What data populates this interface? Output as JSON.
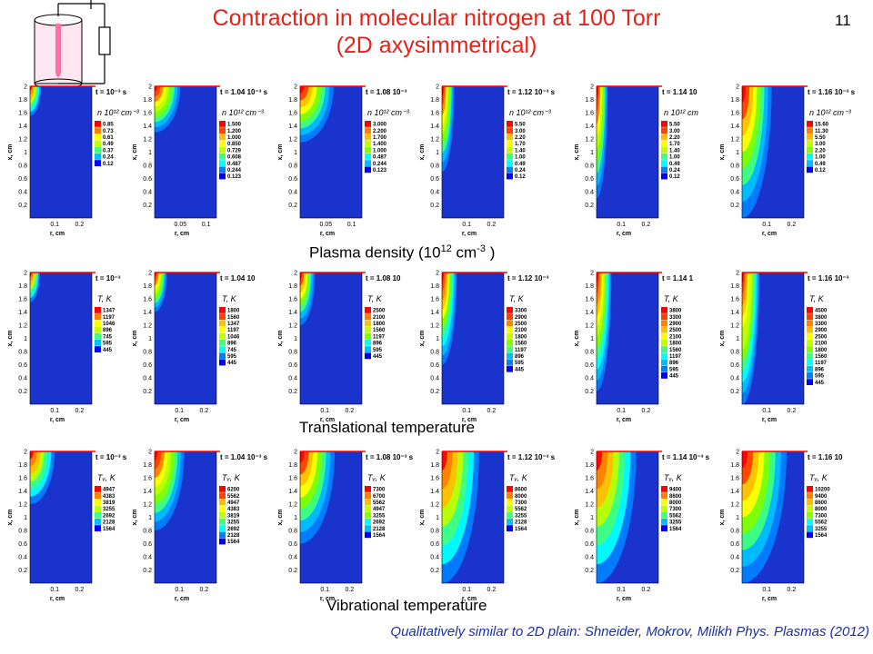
{
  "slide": {
    "title_line1": "Contraction in molecular nitrogen at 100 Torr",
    "title_line2": "(2D axysimmetrical)",
    "page_number": "11",
    "footnote": "Qualitatively similar to 2D plain: Shneider, Mokrov, Milikh Phys. Plasmas (2012)"
  },
  "row_labels": [
    {
      "base": "Plasma density (10",
      "sup1": "12",
      "mid": " cm",
      "sup2": "-3",
      "end": " )"
    },
    {
      "base": "Translational temperature",
      "sup1": "",
      "mid": "",
      "sup2": "",
      "end": ""
    },
    {
      "base": "Vibrational temperature",
      "sup1": "",
      "mid": "",
      "sup2": "",
      "end": ""
    }
  ],
  "colors": {
    "title": "#e2231a",
    "footnote": "#1c2fa5",
    "field_background": "#1a33cc",
    "electrode_line": "#ff0000",
    "colormap": [
      "#0000ff",
      "#0080ff",
      "#00bfff",
      "#00ffff",
      "#40ff80",
      "#80ff00",
      "#bfff00",
      "#ffff00",
      "#ffbf00",
      "#ff8000",
      "#ff4000",
      "#ff0000"
    ],
    "reactor_fill": "#ffe0ee",
    "reactor_channel": "#ff6fa5"
  },
  "axis": {
    "ylabel": "x, cm",
    "xlabel": "r, cm",
    "yticks": [
      "0.2",
      "0.4",
      "0.6",
      "0.8",
      "1",
      "1.2",
      "1.4",
      "1.6",
      "1.8",
      "2"
    ]
  },
  "chart_data": [
    {
      "type": "heatmap",
      "row": "density",
      "time_label": "t = 10⁻³ s",
      "legend_title": "n 10¹² cm⁻³",
      "legend": [
        "0.85",
        "0.73",
        "0.61",
        "0.49",
        "0.37",
        "0.24",
        "0.12"
      ],
      "xticks": [
        "0.1",
        "0.2"
      ],
      "x_range": [
        0,
        0.25
      ],
      "y_range": [
        0,
        2
      ],
      "xlabel": "r, cm",
      "ylabel": "x, cm",
      "contour_extent_r": 0.045,
      "contour_extent_x": 0.45
    },
    {
      "type": "heatmap",
      "row": "density",
      "time_label": "t = 1.04 10⁻³ s",
      "legend_title": "n 10¹² cm⁻³",
      "legend": [
        "1.500",
        "1.200",
        "1.000",
        "0.850",
        "0.729",
        "0.608",
        "0.487",
        "0.244",
        "0.123"
      ],
      "xticks": [
        "0.05",
        "0.1"
      ],
      "x_range": [
        0,
        0.12
      ],
      "y_range": [
        0,
        2
      ],
      "xlabel": "r, cm",
      "ylabel": "x, cm",
      "contour_extent_r": 0.05,
      "contour_extent_x": 0.7
    },
    {
      "type": "heatmap",
      "row": "density",
      "time_label": "t = 1.08 10⁻³",
      "legend_title": "n 10¹² cm⁻³",
      "legend": [
        "3.000",
        "2.200",
        "1.700",
        "1.400",
        "1.000",
        "0.487",
        "0.244",
        "0.123"
      ],
      "xticks": [
        "0.05",
        "0.1"
      ],
      "x_range": [
        0,
        0.12
      ],
      "y_range": [
        0,
        2
      ],
      "xlabel": "r, cm",
      "ylabel": "x, cm",
      "contour_extent_r": 0.065,
      "contour_extent_x": 0.85
    },
    {
      "type": "heatmap",
      "row": "density",
      "time_label": "t = 1.12 10⁻³ s",
      "legend_title": "n 10¹² cm⁻³",
      "legend": [
        "5.50",
        "3.00",
        "2.20",
        "1.70",
        "1.40",
        "1.00",
        "0.49",
        "0.24",
        "0.12"
      ],
      "xticks": [
        "0.1",
        "0.2"
      ],
      "x_range": [
        0,
        0.25
      ],
      "y_range": [
        0,
        2
      ],
      "xlabel": "r, cm",
      "ylabel": "x, cm",
      "contour_extent_r": 0.05,
      "contour_extent_x": 1.3
    },
    {
      "type": "heatmap",
      "row": "density",
      "time_label": "t = 1.14 10",
      "legend_title": "n 10¹² cm",
      "legend": [
        "5.50",
        "3.00",
        "2.20",
        "1.70",
        "1.40",
        "1.00",
        "0.49",
        "0.24",
        "0.12"
      ],
      "xticks": [
        "0.1",
        "0.2"
      ],
      "x_range": [
        0,
        0.25
      ],
      "y_range": [
        0,
        2
      ],
      "xlabel": "r, cm",
      "ylabel": "x, cm",
      "contour_extent_r": 0.045,
      "contour_extent_x": 1.7
    },
    {
      "type": "heatmap",
      "row": "density",
      "time_label": "t = 1.16 10⁻³ s",
      "legend_title": "n 10¹² cm⁻³",
      "legend": [
        "15.60",
        "11.30",
        "5.50",
        "3.00",
        "2.20",
        "1.00",
        "0.49",
        "0.12"
      ],
      "xticks": [
        "0.1",
        "0.2"
      ],
      "x_range": [
        0,
        0.25
      ],
      "y_range": [
        0,
        2
      ],
      "xlabel": "r, cm",
      "ylabel": "x, cm",
      "contour_extent_r": 0.12,
      "contour_extent_x": 2.0
    },
    {
      "type": "heatmap",
      "row": "translational",
      "time_label": "t = 10⁻³",
      "legend_title": "T, K",
      "legend": [
        "1347",
        "1197",
        "1046",
        "896",
        "745",
        "595",
        "445"
      ],
      "xticks": [
        "0.1",
        "0.2"
      ],
      "x_range": [
        0,
        0.25
      ],
      "y_range": [
        0,
        2
      ],
      "xlabel": "r, cm",
      "ylabel": "x, cm",
      "contour_extent_r": 0.04,
      "contour_extent_x": 0.45
    },
    {
      "type": "heatmap",
      "row": "translational",
      "time_label": "t = 1.04 10",
      "legend_title": "T, K",
      "legend": [
        "1800",
        "1560",
        "1347",
        "1197",
        "1046",
        "896",
        "745",
        "595",
        "445"
      ],
      "xticks": [
        "0.1",
        "0.2"
      ],
      "x_range": [
        0,
        0.25
      ],
      "y_range": [
        0,
        2
      ],
      "xlabel": "r, cm",
      "ylabel": "x, cm",
      "contour_extent_r": 0.05,
      "contour_extent_x": 0.6
    },
    {
      "type": "heatmap",
      "row": "translational",
      "time_label": "t = 1.08 10",
      "legend_title": "T, K",
      "legend": [
        "2500",
        "2100",
        "1800",
        "1560",
        "1197",
        "896",
        "595",
        "445"
      ],
      "xticks": [
        "0.1",
        "0.2"
      ],
      "x_range": [
        0,
        0.25
      ],
      "y_range": [
        0,
        2
      ],
      "xlabel": "r, cm",
      "ylabel": "x, cm",
      "contour_extent_r": 0.06,
      "contour_extent_x": 0.8
    },
    {
      "type": "heatmap",
      "row": "translational",
      "time_label": "t = 1.12 10⁻³",
      "legend_title": "T, K",
      "legend": [
        "3300",
        "2900",
        "2500",
        "2100",
        "1800",
        "1560",
        "1197",
        "896",
        "595",
        "445"
      ],
      "xticks": [
        "0.1",
        "0.2"
      ],
      "x_range": [
        0,
        0.25
      ],
      "y_range": [
        0,
        2
      ],
      "xlabel": "r, cm",
      "ylabel": "x, cm",
      "contour_extent_r": 0.06,
      "contour_extent_x": 1.4
    },
    {
      "type": "heatmap",
      "row": "translational",
      "time_label": "t = 1.14 1",
      "legend_title": "T, K",
      "legend": [
        "3800",
        "3300",
        "2900",
        "2500",
        "2100",
        "1800",
        "1560",
        "1197",
        "896",
        "595",
        "445"
      ],
      "xticks": [
        "0.1",
        "0.2"
      ],
      "x_range": [
        0,
        0.25
      ],
      "y_range": [
        0,
        2
      ],
      "xlabel": "r, cm",
      "ylabel": "x, cm",
      "contour_extent_r": 0.06,
      "contour_extent_x": 1.8
    },
    {
      "type": "heatmap",
      "row": "translational",
      "time_label": "t = 1.16 10⁻³",
      "legend_title": "T, K",
      "legend": [
        "4500",
        "3800",
        "3300",
        "2900",
        "2500",
        "2100",
        "1800",
        "1560",
        "1197",
        "896",
        "595",
        "445"
      ],
      "xticks": [
        "0.1",
        "0.2"
      ],
      "x_range": [
        0,
        0.25
      ],
      "y_range": [
        0,
        2
      ],
      "xlabel": "r, cm",
      "ylabel": "x, cm",
      "contour_extent_r": 0.07,
      "contour_extent_x": 2.0
    },
    {
      "type": "heatmap",
      "row": "vibrational",
      "time_label": "t = 10⁻³ s",
      "legend_title": "Tᵥ, K",
      "legend": [
        "4947",
        "4383",
        "3819",
        "3255",
        "2692",
        "2128",
        "1564"
      ],
      "xticks": [
        "0.1",
        "0.2"
      ],
      "x_range": [
        0,
        0.25
      ],
      "y_range": [
        0,
        2
      ],
      "xlabel": "r, cm",
      "ylabel": "x, cm",
      "contour_extent_r": 0.1,
      "contour_extent_x": 0.8
    },
    {
      "type": "heatmap",
      "row": "vibrational",
      "time_label": "t = 1.04 10⁻³ s",
      "legend_title": "Tᵥ, K",
      "legend": [
        "6200",
        "5562",
        "4947",
        "4383",
        "3819",
        "3255",
        "2692",
        "2128",
        "1564"
      ],
      "xticks": [
        "0.1",
        "0.2"
      ],
      "x_range": [
        0,
        0.25
      ],
      "y_range": [
        0,
        2
      ],
      "xlabel": "r, cm",
      "ylabel": "x, cm",
      "contour_extent_r": 0.12,
      "contour_extent_x": 1.2
    },
    {
      "type": "heatmap",
      "row": "vibrational",
      "time_label": "t = 1.08 10⁻³ s",
      "legend_title": "Tᵥ, K",
      "legend": [
        "7300",
        "6700",
        "5562",
        "4947",
        "3255",
        "2692",
        "2128",
        "1564"
      ],
      "xticks": [
        "0.1",
        "0.2"
      ],
      "x_range": [
        0,
        0.25
      ],
      "y_range": [
        0,
        2
      ],
      "xlabel": "r, cm",
      "ylabel": "x, cm",
      "contour_extent_r": 0.14,
      "contour_extent_x": 1.4
    },
    {
      "type": "heatmap",
      "row": "vibrational",
      "time_label": "t = 1.12 10⁻³ s",
      "legend_title": "Tᵥ, K",
      "legend": [
        "8600",
        "8000",
        "7300",
        "5562",
        "3255",
        "2128",
        "1564"
      ],
      "xticks": [
        "0.1",
        "0.2"
      ],
      "x_range": [
        0,
        0.25
      ],
      "y_range": [
        0,
        2
      ],
      "xlabel": "r, cm",
      "ylabel": "x, cm",
      "contour_extent_r": 0.15,
      "contour_extent_x": 2.0
    },
    {
      "type": "heatmap",
      "row": "vibrational",
      "time_label": "t = 1.14 10⁻³ s",
      "legend_title": "Tᵥ, K",
      "legend": [
        "9400",
        "8600",
        "8000",
        "7300",
        "5562",
        "3255",
        "1564"
      ],
      "xticks": [
        "0.1",
        "0.2"
      ],
      "x_range": [
        0,
        0.25
      ],
      "y_range": [
        0,
        2
      ],
      "xlabel": "r, cm",
      "ylabel": "x, cm",
      "contour_extent_r": 0.16,
      "contour_extent_x": 2.0
    },
    {
      "type": "heatmap",
      "row": "vibrational",
      "time_label": "t = 1.16 10",
      "legend_title": "Tᵥ, K",
      "legend": [
        "10200",
        "9400",
        "8600",
        "8000",
        "7300",
        "5562",
        "3255",
        "1564"
      ],
      "xticks": [
        "0.1",
        "0.2"
      ],
      "x_range": [
        0,
        0.25
      ],
      "y_range": [
        0,
        2
      ],
      "xlabel": "r, cm",
      "ylabel": "x, cm",
      "contour_extent_r": 0.18,
      "contour_extent_x": 2.0
    }
  ]
}
